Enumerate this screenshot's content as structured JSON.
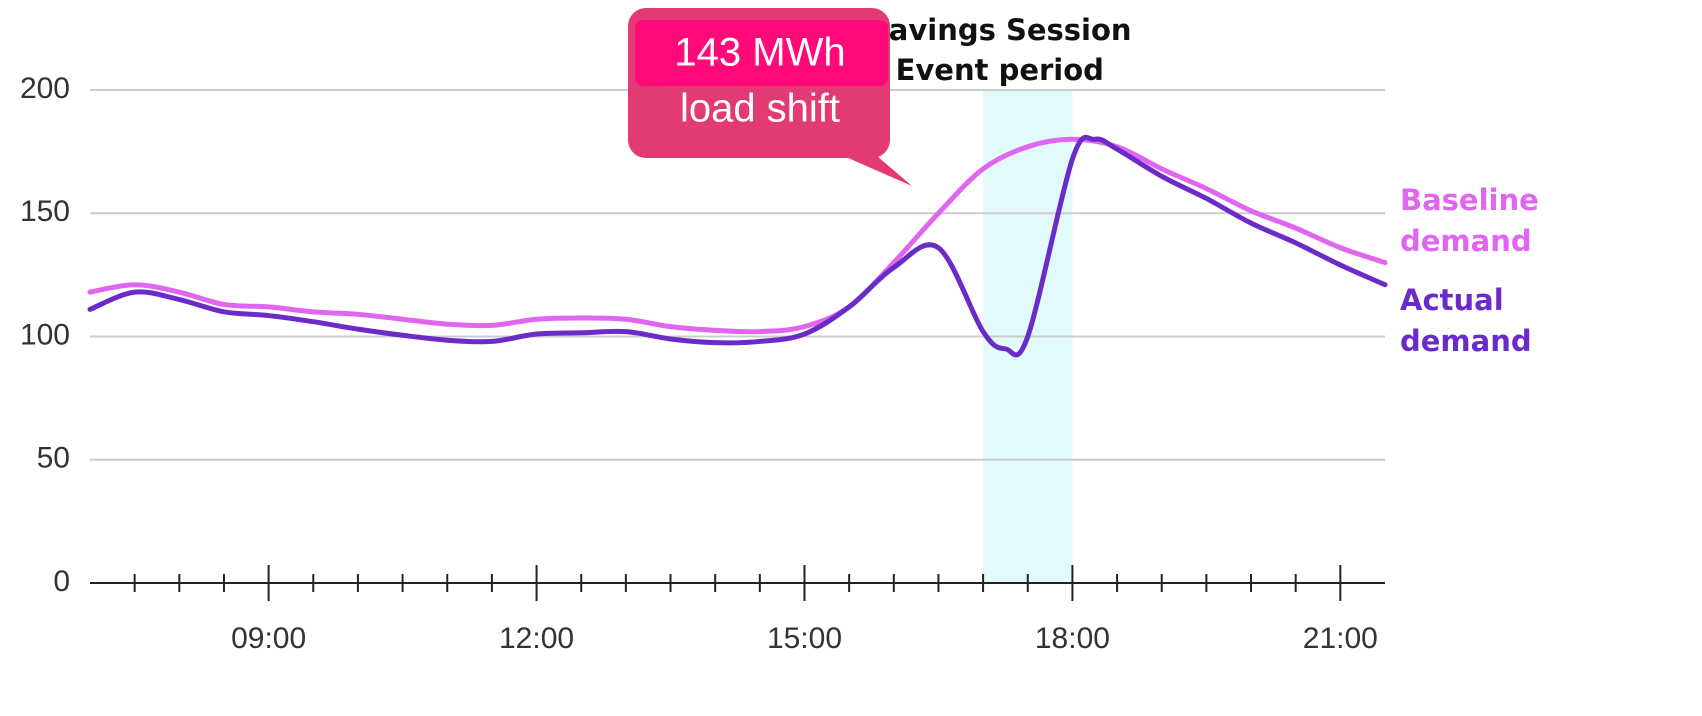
{
  "chart_data": {
    "type": "line",
    "xlim": [
      7,
      21.5
    ],
    "ylim": [
      0,
      200
    ],
    "yticks": [
      0,
      50,
      100,
      150,
      200
    ],
    "xticks": [
      {
        "value": 9,
        "label": "09:00"
      },
      {
        "value": 12,
        "label": "12:00"
      },
      {
        "value": 15,
        "label": "15:00"
      },
      {
        "value": 18,
        "label": "18:00"
      },
      {
        "value": 21,
        "label": "21:00"
      }
    ],
    "xminorticks": [
      7.5,
      8,
      8.5,
      9.5,
      10,
      10.5,
      11,
      11.5,
      12.5,
      13,
      13.5,
      14,
      14.5,
      15.5,
      16,
      16.5,
      17,
      17.5,
      18.5,
      19,
      19.5,
      20,
      20.5
    ],
    "grid": true,
    "highlight": {
      "x": [
        17,
        18
      ],
      "color": "#e3fafc",
      "label": [
        "Savings Session",
        "Event period"
      ]
    },
    "callout": {
      "lines": [
        "143 MWh",
        "load shift"
      ],
      "color": "#e23a75",
      "accent": "#ff0a78"
    },
    "series": [
      {
        "name": "Baseline demand",
        "color": "#e066f0",
        "x": [
          7,
          7.5,
          8,
          8.5,
          9,
          9.5,
          10,
          10.5,
          11,
          11.5,
          12,
          12.5,
          13,
          13.5,
          14,
          14.5,
          15,
          15.5,
          16,
          16.5,
          17,
          17.5,
          18,
          18.5,
          19,
          19.5,
          20,
          20.5,
          21,
          21.5
        ],
        "values": [
          118,
          121,
          118,
          113,
          112,
          110,
          109,
          107,
          105,
          104.5,
          107,
          107.5,
          107,
          104,
          102.5,
          102,
          104,
          112,
          130,
          150,
          168,
          177,
          180,
          177,
          168,
          160,
          151,
          144,
          136,
          130
        ]
      },
      {
        "name": "Actual demand",
        "color": "#6a2bc9",
        "x": [
          7,
          7.5,
          8,
          8.5,
          9,
          9.5,
          10,
          10.5,
          11,
          11.5,
          12,
          12.5,
          13,
          13.5,
          14,
          14.5,
          15,
          15.5,
          16,
          16.5,
          17,
          17.25,
          17.5,
          18,
          18.25,
          18.5,
          19,
          19.5,
          20,
          20.5,
          21,
          21.5
        ],
        "values": [
          111,
          118,
          115,
          110,
          108.5,
          106,
          103,
          100.5,
          98.5,
          98,
          101,
          101.5,
          102,
          99,
          97.5,
          98,
          101,
          112,
          128,
          136,
          102,
          95,
          100,
          172,
          180,
          176,
          165,
          156,
          146,
          138,
          129,
          121
        ]
      }
    ]
  }
}
